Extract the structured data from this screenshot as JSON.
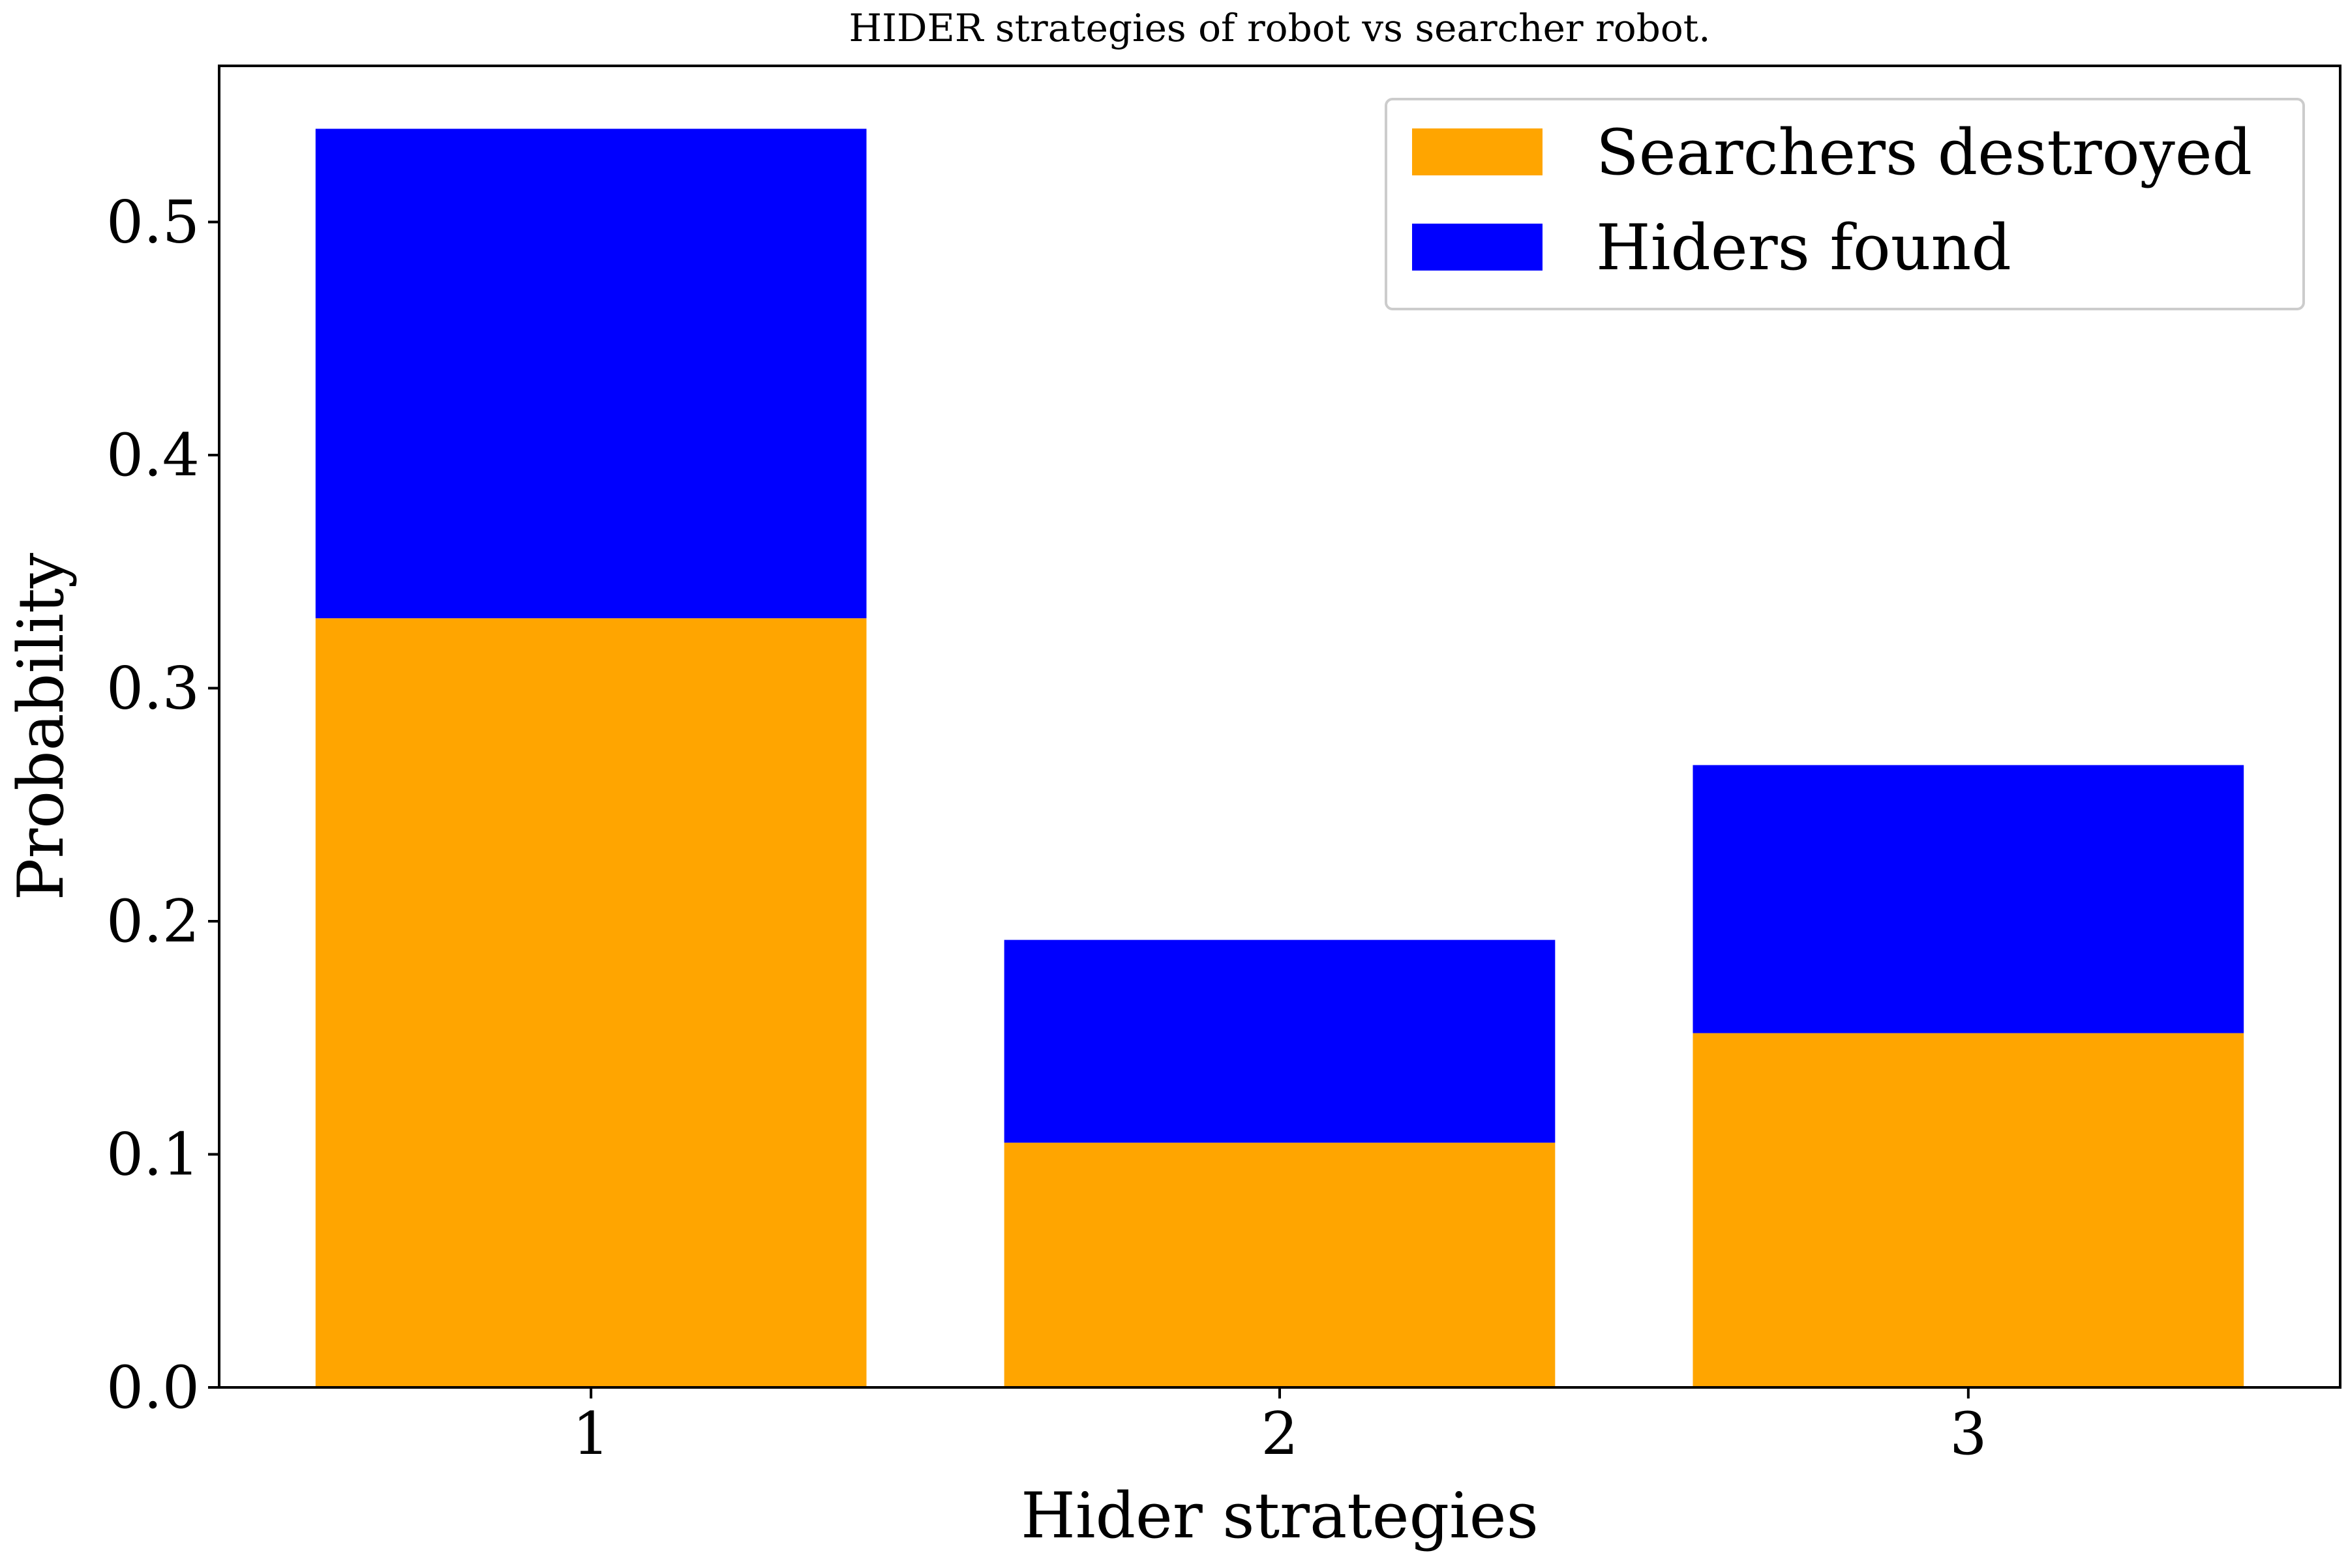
{
  "chart_data": {
    "type": "bar",
    "stacked": true,
    "title": "HIDER strategies of robot vs searcher robot.",
    "xlabel": "Hider strategies",
    "ylabel": "Probability",
    "categories": [
      "1",
      "2",
      "3"
    ],
    "series": [
      {
        "name": "Searchers destroyed",
        "values": [
          0.33,
          0.105,
          0.152
        ],
        "color": "#ffa500"
      },
      {
        "name": "Hiders found",
        "values": [
          0.21,
          0.087,
          0.115
        ],
        "color": "#0000ff"
      }
    ],
    "ylim": [
      0,
      0.567
    ],
    "yticks": [
      "0.0",
      "0.1",
      "0.2",
      "0.3",
      "0.4",
      "0.5"
    ],
    "grid": false,
    "legend_position": "top-right"
  }
}
